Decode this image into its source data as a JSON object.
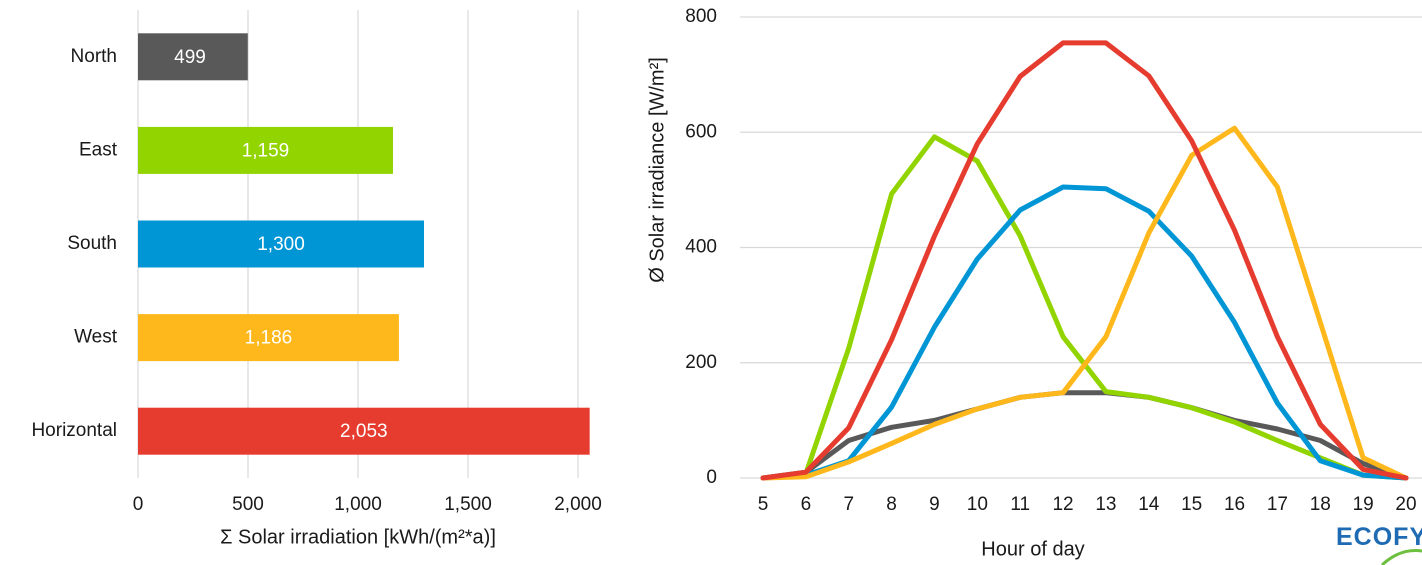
{
  "chart_data": [
    {
      "type": "bar",
      "orientation": "horizontal",
      "categories": [
        "North",
        "East",
        "South",
        "West",
        "Horizontal"
      ],
      "values": [
        499,
        1159,
        1300,
        1186,
        2053
      ],
      "value_labels": [
        "499",
        "1,159",
        "1,300",
        "1,186",
        "2,053"
      ],
      "colors": [
        "#595959",
        "#92d400",
        "#0096d6",
        "#ffb81c",
        "#e63c2f"
      ],
      "xlim": [
        0,
        2000
      ],
      "xticks": [
        0,
        500,
        1000,
        1500,
        2000
      ],
      "xtick_labels": [
        "0",
        "500",
        "1,000",
        "1,500",
        "2,000"
      ],
      "xlabel": "Σ Solar irradiation [kWh/(m²*a)]",
      "ylabel": "",
      "grid": true
    },
    {
      "type": "line",
      "x": [
        5,
        6,
        7,
        8,
        9,
        10,
        11,
        12,
        13,
        14,
        15,
        16,
        17,
        18,
        19,
        20
      ],
      "xtick_labels": [
        "5",
        "6",
        "7",
        "8",
        "9",
        "10",
        "11",
        "12",
        "13",
        "14",
        "15",
        "16",
        "17",
        "18",
        "19",
        "20"
      ],
      "ylim": [
        0,
        800
      ],
      "yticks": [
        0,
        200,
        400,
        600,
        800
      ],
      "ytick_labels": [
        "0",
        "200",
        "400",
        "600",
        "800"
      ],
      "xlabel": "Hour of day",
      "ylabel": "Ø Solar irradiance [W/m²]",
      "grid": true,
      "series": [
        {
          "color": "#595959",
          "values": [
            0,
            10,
            65,
            88,
            100,
            120,
            140,
            148,
            148,
            140,
            122,
            100,
            85,
            65,
            25,
            0
          ]
        },
        {
          "color": "#92d400",
          "values": [
            0,
            8,
            225,
            493,
            592,
            550,
            420,
            245,
            150,
            140,
            122,
            97,
            65,
            35,
            5,
            0
          ]
        },
        {
          "color": "#0096d6",
          "values": [
            0,
            5,
            30,
            123,
            262,
            380,
            465,
            505,
            502,
            463,
            385,
            270,
            130,
            30,
            5,
            0
          ]
        },
        {
          "color": "#ffb81c",
          "values": [
            0,
            2,
            28,
            60,
            93,
            120,
            140,
            148,
            245,
            425,
            560,
            607,
            505,
            270,
            35,
            0
          ]
        },
        {
          "color": "#e63c2f",
          "values": [
            0,
            10,
            87,
            240,
            420,
            580,
            697,
            755,
            755,
            698,
            585,
            430,
            245,
            93,
            15,
            0
          ]
        }
      ]
    }
  ],
  "logo": {
    "text": "ECOFYS",
    "color": "#1f6bb3",
    "swoosh_color": "#6dbf3f"
  }
}
